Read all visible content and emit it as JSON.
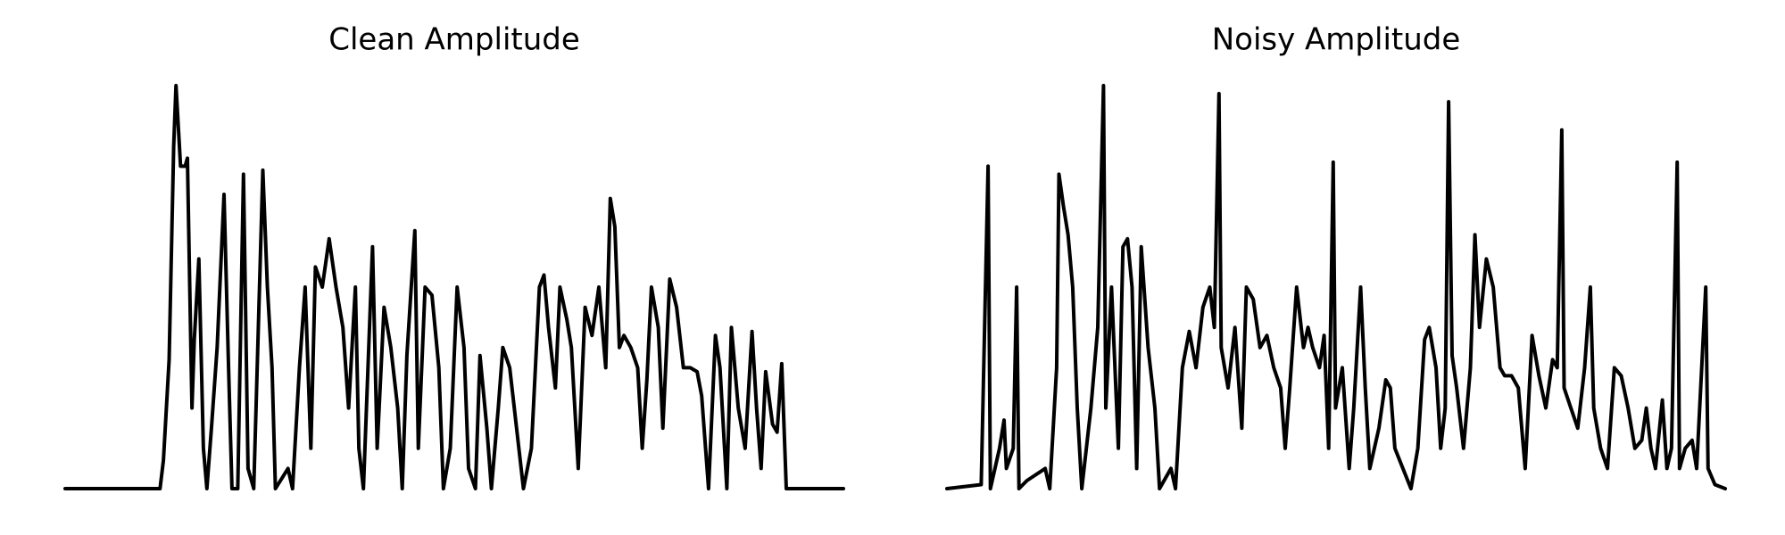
{
  "chart_data": [
    {
      "type": "line",
      "title": "Clean Amplitude",
      "color": "#000000",
      "xlim": [
        0,
        681
      ],
      "ylim": [
        0,
        1
      ],
      "x": [
        0,
        83,
        86,
        91,
        95,
        97,
        101,
        105,
        107,
        109,
        111,
        113,
        117,
        121,
        124,
        128,
        133,
        139,
        143,
        146,
        151,
        156,
        160,
        165,
        173,
        177,
        181,
        184,
        195,
        199,
        205,
        210,
        215,
        219,
        225,
        231,
        237,
        243,
        248,
        254,
        257,
        261,
        269,
        273,
        279,
        285,
        291,
        295,
        299,
        306,
        309,
        315,
        321,
        327,
        331,
        337,
        343,
        349,
        353,
        359,
        363,
        369,
        373,
        379,
        383,
        389,
        395,
        401,
        408,
        415,
        419,
        423,
        429,
        433,
        439,
        443,
        449,
        455,
        461,
        467,
        473,
        477,
        481,
        485,
        489,
        495,
        501,
        505,
        509,
        513,
        519,
        523,
        529,
        535,
        541,
        547,
        553,
        557,
        563,
        569,
        573,
        579,
        583,
        589,
        595,
        601,
        605,
        609,
        613,
        619,
        623,
        627,
        631,
        681
      ],
      "values": [
        0,
        0,
        0.07,
        0.32,
        0.85,
        1.0,
        0.8,
        0.8,
        0.82,
        0.5,
        0.2,
        0.37,
        0.57,
        0.1,
        0,
        0.15,
        0.35,
        0.73,
        0.3,
        0,
        0,
        0.78,
        0.05,
        0,
        0.79,
        0.5,
        0.3,
        0,
        0.05,
        0,
        0.3,
        0.5,
        0.1,
        0.55,
        0.5,
        0.62,
        0.5,
        0.4,
        0.2,
        0.5,
        0.1,
        0,
        0.6,
        0.1,
        0.45,
        0.35,
        0.2,
        0,
        0.33,
        0.64,
        0.1,
        0.5,
        0.48,
        0.3,
        0,
        0.1,
        0.5,
        0.35,
        0.05,
        0,
        0.33,
        0.15,
        0,
        0.2,
        0.35,
        0.3,
        0.15,
        0,
        0.1,
        0.5,
        0.53,
        0.4,
        0.25,
        0.5,
        0.42,
        0.35,
        0.05,
        0.45,
        0.38,
        0.5,
        0.3,
        0.72,
        0.65,
        0.35,
        0.38,
        0.35,
        0.3,
        0.1,
        0.27,
        0.5,
        0.4,
        0.15,
        0.52,
        0.45,
        0.3,
        0.3,
        0.29,
        0.23,
        0,
        0.38,
        0.3,
        0,
        0.4,
        0.2,
        0.1,
        0.39,
        0.2,
        0.05,
        0.29,
        0.16,
        0.14,
        0.31,
        0,
        0
      ]
    },
    {
      "type": "line",
      "title": "Noisy Amplitude",
      "color": "#000000",
      "xlim": [
        0,
        681
      ],
      "ylim": [
        0,
        1
      ],
      "x": [
        0,
        30,
        36,
        38,
        42,
        46,
        50,
        52,
        58,
        61,
        63,
        70,
        86,
        90,
        96,
        98,
        102,
        106,
        110,
        114,
        118,
        126,
        132,
        137,
        139,
        144,
        150,
        154,
        158,
        162,
        166,
        170,
        176,
        182,
        186,
        196,
        200,
        206,
        212,
        218,
        224,
        230,
        234,
        238,
        240,
        246,
        252,
        258,
        262,
        268,
        274,
        280,
        286,
        292,
        296,
        300,
        306,
        312,
        316,
        320,
        326,
        330,
        334,
        338,
        340,
        346,
        352,
        356,
        362,
        366,
        370,
        378,
        384,
        388,
        392,
        406,
        412,
        418,
        422,
        428,
        432,
        436,
        439,
        442,
        446,
        452,
        458,
        462,
        466,
        472,
        478,
        484,
        488,
        494,
        500,
        506,
        512,
        518,
        524,
        530,
        534,
        538,
        540,
        546,
        552,
        558,
        563,
        566,
        572,
        578,
        584,
        590,
        596,
        602,
        608,
        612,
        616,
        620,
        626,
        630,
        634,
        639,
        641,
        646,
        652,
        656,
        664,
        666,
        672,
        681
      ],
      "values": [
        0,
        0.01,
        0.8,
        0,
        0.05,
        0.1,
        0.17,
        0.05,
        0.1,
        0.5,
        0,
        0.02,
        0.05,
        0,
        0.3,
        0.78,
        0.7,
        0.63,
        0.5,
        0.2,
        0,
        0.2,
        0.4,
        1.0,
        0.2,
        0.5,
        0.1,
        0.6,
        0.62,
        0.5,
        0.05,
        0.6,
        0.35,
        0.2,
        0,
        0.05,
        0,
        0.3,
        0.39,
        0.3,
        0.45,
        0.5,
        0.4,
        0.98,
        0.35,
        0.25,
        0.4,
        0.15,
        0.5,
        0.47,
        0.35,
        0.38,
        0.3,
        0.25,
        0.1,
        0.25,
        0.5,
        0.35,
        0.4,
        0.35,
        0.3,
        0.38,
        0.1,
        0.81,
        0.2,
        0.3,
        0.05,
        0.2,
        0.5,
        0.25,
        0.05,
        0.15,
        0.27,
        0.25,
        0.1,
        0,
        0.1,
        0.37,
        0.4,
        0.3,
        0.1,
        0.2,
        0.96,
        0.33,
        0.25,
        0.1,
        0.3,
        0.63,
        0.4,
        0.57,
        0.5,
        0.3,
        0.28,
        0.28,
        0.25,
        0.05,
        0.38,
        0.28,
        0.2,
        0.32,
        0.3,
        0.89,
        0.25,
        0.2,
        0.15,
        0.3,
        0.5,
        0.2,
        0.1,
        0.05,
        0.3,
        0.28,
        0.2,
        0.1,
        0.12,
        0.2,
        0.1,
        0.05,
        0.22,
        0.05,
        0.1,
        0.81,
        0.05,
        0.1,
        0.12,
        0.05,
        0.5,
        0.05,
        0.01,
        0
      ]
    }
  ]
}
